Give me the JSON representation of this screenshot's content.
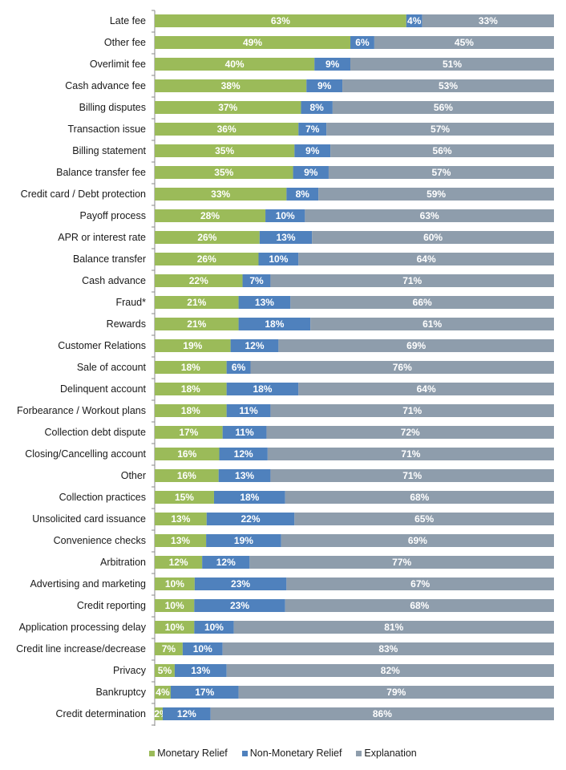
{
  "chart_data": {
    "type": "bar",
    "orientation": "horizontal",
    "stacked": "percent",
    "categories": [
      "Late fee",
      "Other fee",
      "Overlimit fee",
      "Cash advance fee",
      "Billing disputes",
      "Transaction issue",
      "Billing statement",
      "Balance transfer fee",
      "Credit card / Debt protection",
      "Payoff process",
      "APR or interest rate",
      "Balance transfer",
      "Cash advance",
      "Fraud*",
      "Rewards",
      "Customer Relations",
      "Sale of account",
      "Delinquent account",
      "Forbearance / Workout plans",
      "Collection debt dispute",
      "Closing/Cancelling account",
      "Other",
      "Collection practices",
      "Unsolicited card issuance",
      "Convenience checks",
      "Arbitration",
      "Advertising and marketing",
      "Credit reporting",
      "Application processing delay",
      "Credit line increase/decrease",
      "Privacy",
      "Bankruptcy",
      "Credit determination"
    ],
    "series": [
      {
        "name": "Monetary Relief",
        "color": "#9BBB59",
        "values": [
          63,
          49,
          40,
          38,
          37,
          36,
          35,
          35,
          33,
          28,
          26,
          26,
          22,
          21,
          21,
          19,
          18,
          18,
          18,
          17,
          16,
          16,
          15,
          13,
          13,
          12,
          10,
          10,
          10,
          7,
          5,
          4,
          2
        ]
      },
      {
        "name": "Non-Monetary Relief",
        "color": "#4F81BD",
        "values": [
          4,
          6,
          9,
          9,
          8,
          7,
          9,
          9,
          8,
          10,
          13,
          10,
          7,
          13,
          18,
          12,
          6,
          18,
          11,
          11,
          12,
          13,
          18,
          22,
          19,
          12,
          23,
          23,
          10,
          10,
          13,
          17,
          12
        ]
      },
      {
        "name": "Explanation",
        "color": "#8E9DAC",
        "values": [
          33,
          45,
          51,
          53,
          56,
          57,
          56,
          57,
          59,
          63,
          60,
          64,
          71,
          66,
          61,
          69,
          76,
          64,
          71,
          72,
          71,
          71,
          68,
          65,
          69,
          77,
          67,
          68,
          81,
          83,
          82,
          79,
          86
        ]
      }
    ],
    "value_suffix": "%",
    "xlim": [
      0,
      100
    ],
    "grid": false,
    "legend_position": "bottom"
  }
}
